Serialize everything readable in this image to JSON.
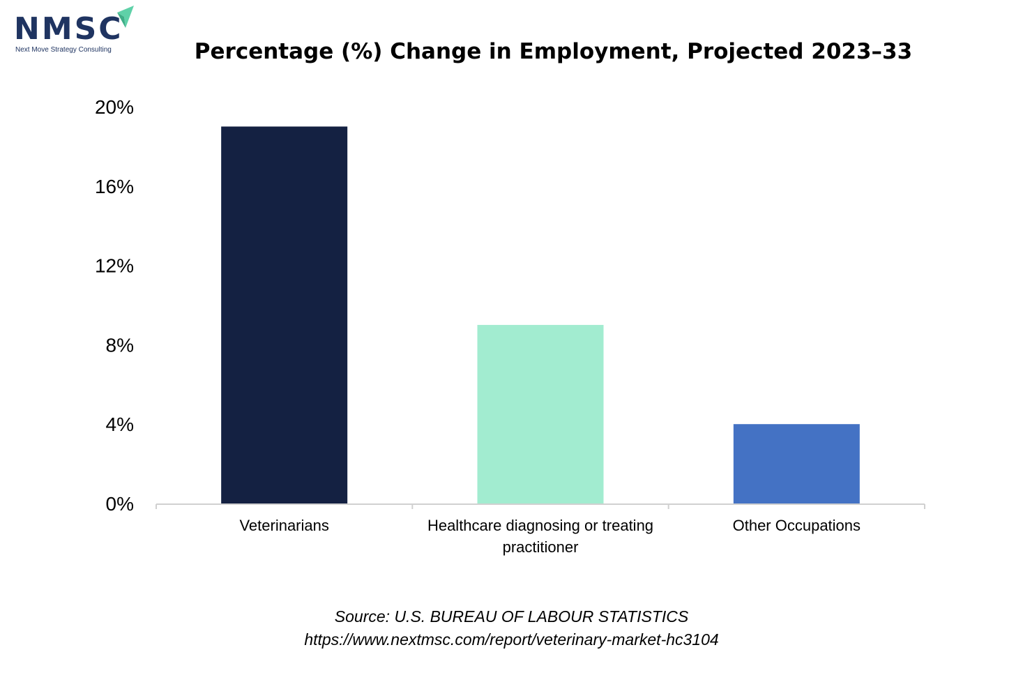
{
  "logo": {
    "name": "NMSC",
    "tagline": "Next Move Strategy Consulting"
  },
  "chart_data": {
    "type": "bar",
    "title": "Percentage (%) Change in Employment, Projected 2023–33",
    "categories": [
      [
        "Veterinarians"
      ],
      [
        "Healthcare diagnosing or treating",
        "practitioner"
      ],
      [
        "Other Occupations"
      ]
    ],
    "values": [
      19,
      9,
      4
    ],
    "colors": [
      "#142142",
      "#a2ecd0",
      "#4472c4"
    ],
    "ylim": [
      0,
      20
    ],
    "yticks": [
      0,
      4,
      8,
      12,
      16,
      20
    ],
    "ytick_labels": [
      "0%",
      "4%",
      "8%",
      "12%",
      "16%",
      "20%"
    ],
    "xlabel": "",
    "ylabel": "",
    "grid": false,
    "legend": "none"
  },
  "source": {
    "line1": "Source: U.S. BUREAU OF LABOUR STATISTICS",
    "line2": "https://www.nextmsc.com/report/veterinary-market-hc3104"
  },
  "colors": {
    "brand": "#1f3461",
    "brand_accent": "#5fd1a8",
    "axis": "#d0d0d0"
  }
}
